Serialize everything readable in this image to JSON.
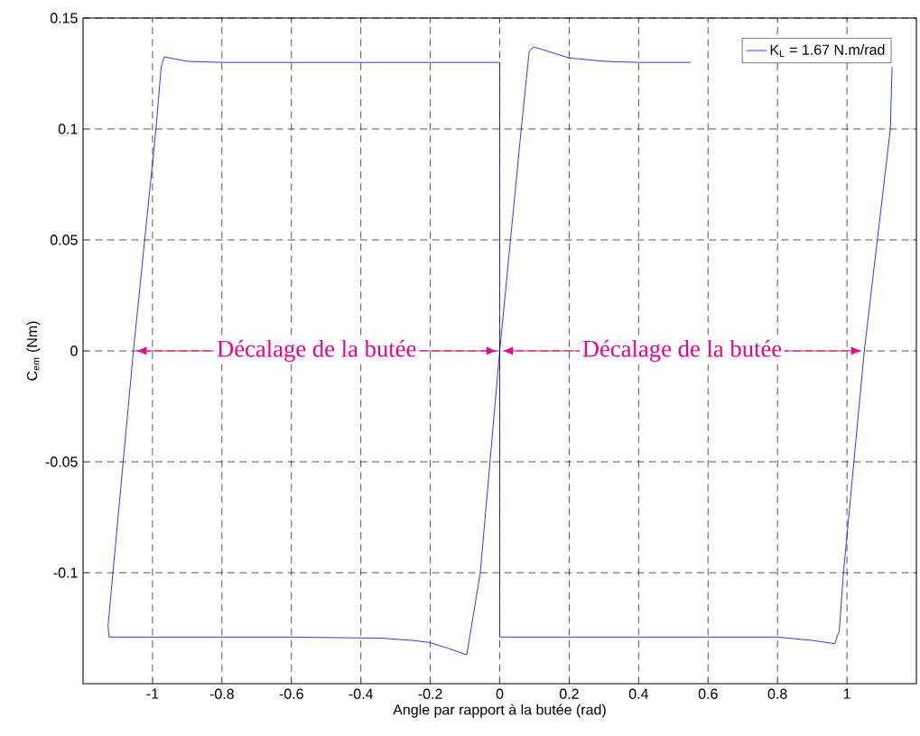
{
  "chart_data": {
    "type": "line",
    "xlabel": "Angle par rapport à la butée (rad)",
    "ylabel": "C$_{em}$ (Nm)",
    "xlim": [
      -1.2,
      1.2
    ],
    "ylim": [
      -0.15,
      0.15
    ],
    "xticks": [
      -1,
      -0.8,
      -0.6,
      -0.4,
      -0.2,
      0,
      0.2,
      0.4,
      0.6,
      0.8,
      1
    ],
    "yticks": [
      -0.1,
      -0.05,
      0,
      0.05,
      0.1,
      0.15
    ],
    "grid": true,
    "legend": "top right",
    "line_style": "solid",
    "marker": "none",
    "series": [
      {
        "name": "K$_{L}$ = 1.67 N.m/rad",
        "color": "#0000ff",
        "x": [
          0.55,
          0.4,
          0.3,
          0.2,
          0.098,
          0.085,
          0.062,
          0.0,
          -0.056,
          -0.095,
          -0.15,
          -0.2,
          -0.25,
          -0.34,
          -0.6,
          -1.125,
          -1.128,
          -1.114,
          -1.055,
          -0.99,
          -0.975,
          -0.966,
          -0.95,
          -0.9,
          -0.8,
          0.0,
          0.0,
          0.8,
          0.9,
          0.965,
          0.978,
          0.99,
          1.05,
          1.125,
          1.13
        ],
        "values": [
          0.13,
          0.13,
          0.1305,
          0.132,
          0.137,
          0.135,
          0.1,
          0.0,
          -0.1,
          -0.137,
          -0.134,
          -0.1315,
          -0.1305,
          -0.1295,
          -0.129,
          -0.129,
          -0.124,
          -0.1,
          0.0,
          0.1,
          0.128,
          0.1325,
          0.132,
          0.1305,
          0.13,
          0.13,
          -0.129,
          -0.129,
          -0.1305,
          -0.132,
          -0.126,
          -0.1,
          0.0,
          0.1,
          0.128
        ]
      }
    ],
    "annotations": [
      "Décalage de la butée",
      "Décalage de la butée"
    ]
  }
}
